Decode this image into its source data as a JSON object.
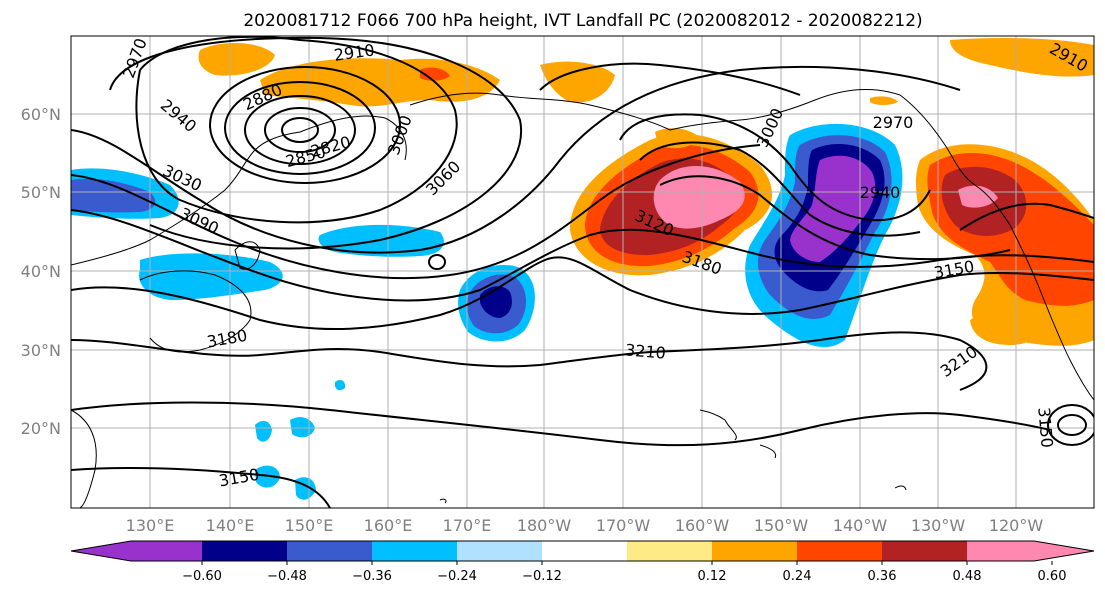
{
  "map": {
    "title": "2020081712 F066 700 hPa height, IVT Landfall PC (2020082012 - 2020082212)",
    "lat_labels": [
      "60°N",
      "50°N",
      "40°N",
      "30°N",
      "20°N"
    ],
    "lon_labels": [
      "130°E",
      "140°E",
      "150°E",
      "160°E",
      "170°E",
      "180°W",
      "170°W",
      "160°W",
      "150°W",
      "140°W",
      "130°W",
      "120°W"
    ],
    "contour_labels": [
      "2910",
      "2880",
      "2850",
      "2820",
      "2940",
      "3030",
      "3090",
      "3060",
      "3000",
      "3120",
      "3180",
      "2940",
      "2970",
      "3150",
      "3180",
      "3210",
      "3210",
      "3150",
      "3150",
      "3000",
      "2970",
      "2910"
    ]
  },
  "colorbar": {
    "tick_labels": [
      "−0.60",
      "−0.48",
      "−0.36",
      "−0.24",
      "−0.12",
      "0.12",
      "0.24",
      "0.36",
      "0.48",
      "0.60"
    ],
    "colors": [
      "#9932cc",
      "#00008b",
      "#3a5bcd",
      "#00bfff",
      "#b0e2ff",
      "#ffffff",
      "#ffeb85",
      "#ffa500",
      "#ff4500",
      "#b22222",
      "#ff88b0"
    ]
  }
}
